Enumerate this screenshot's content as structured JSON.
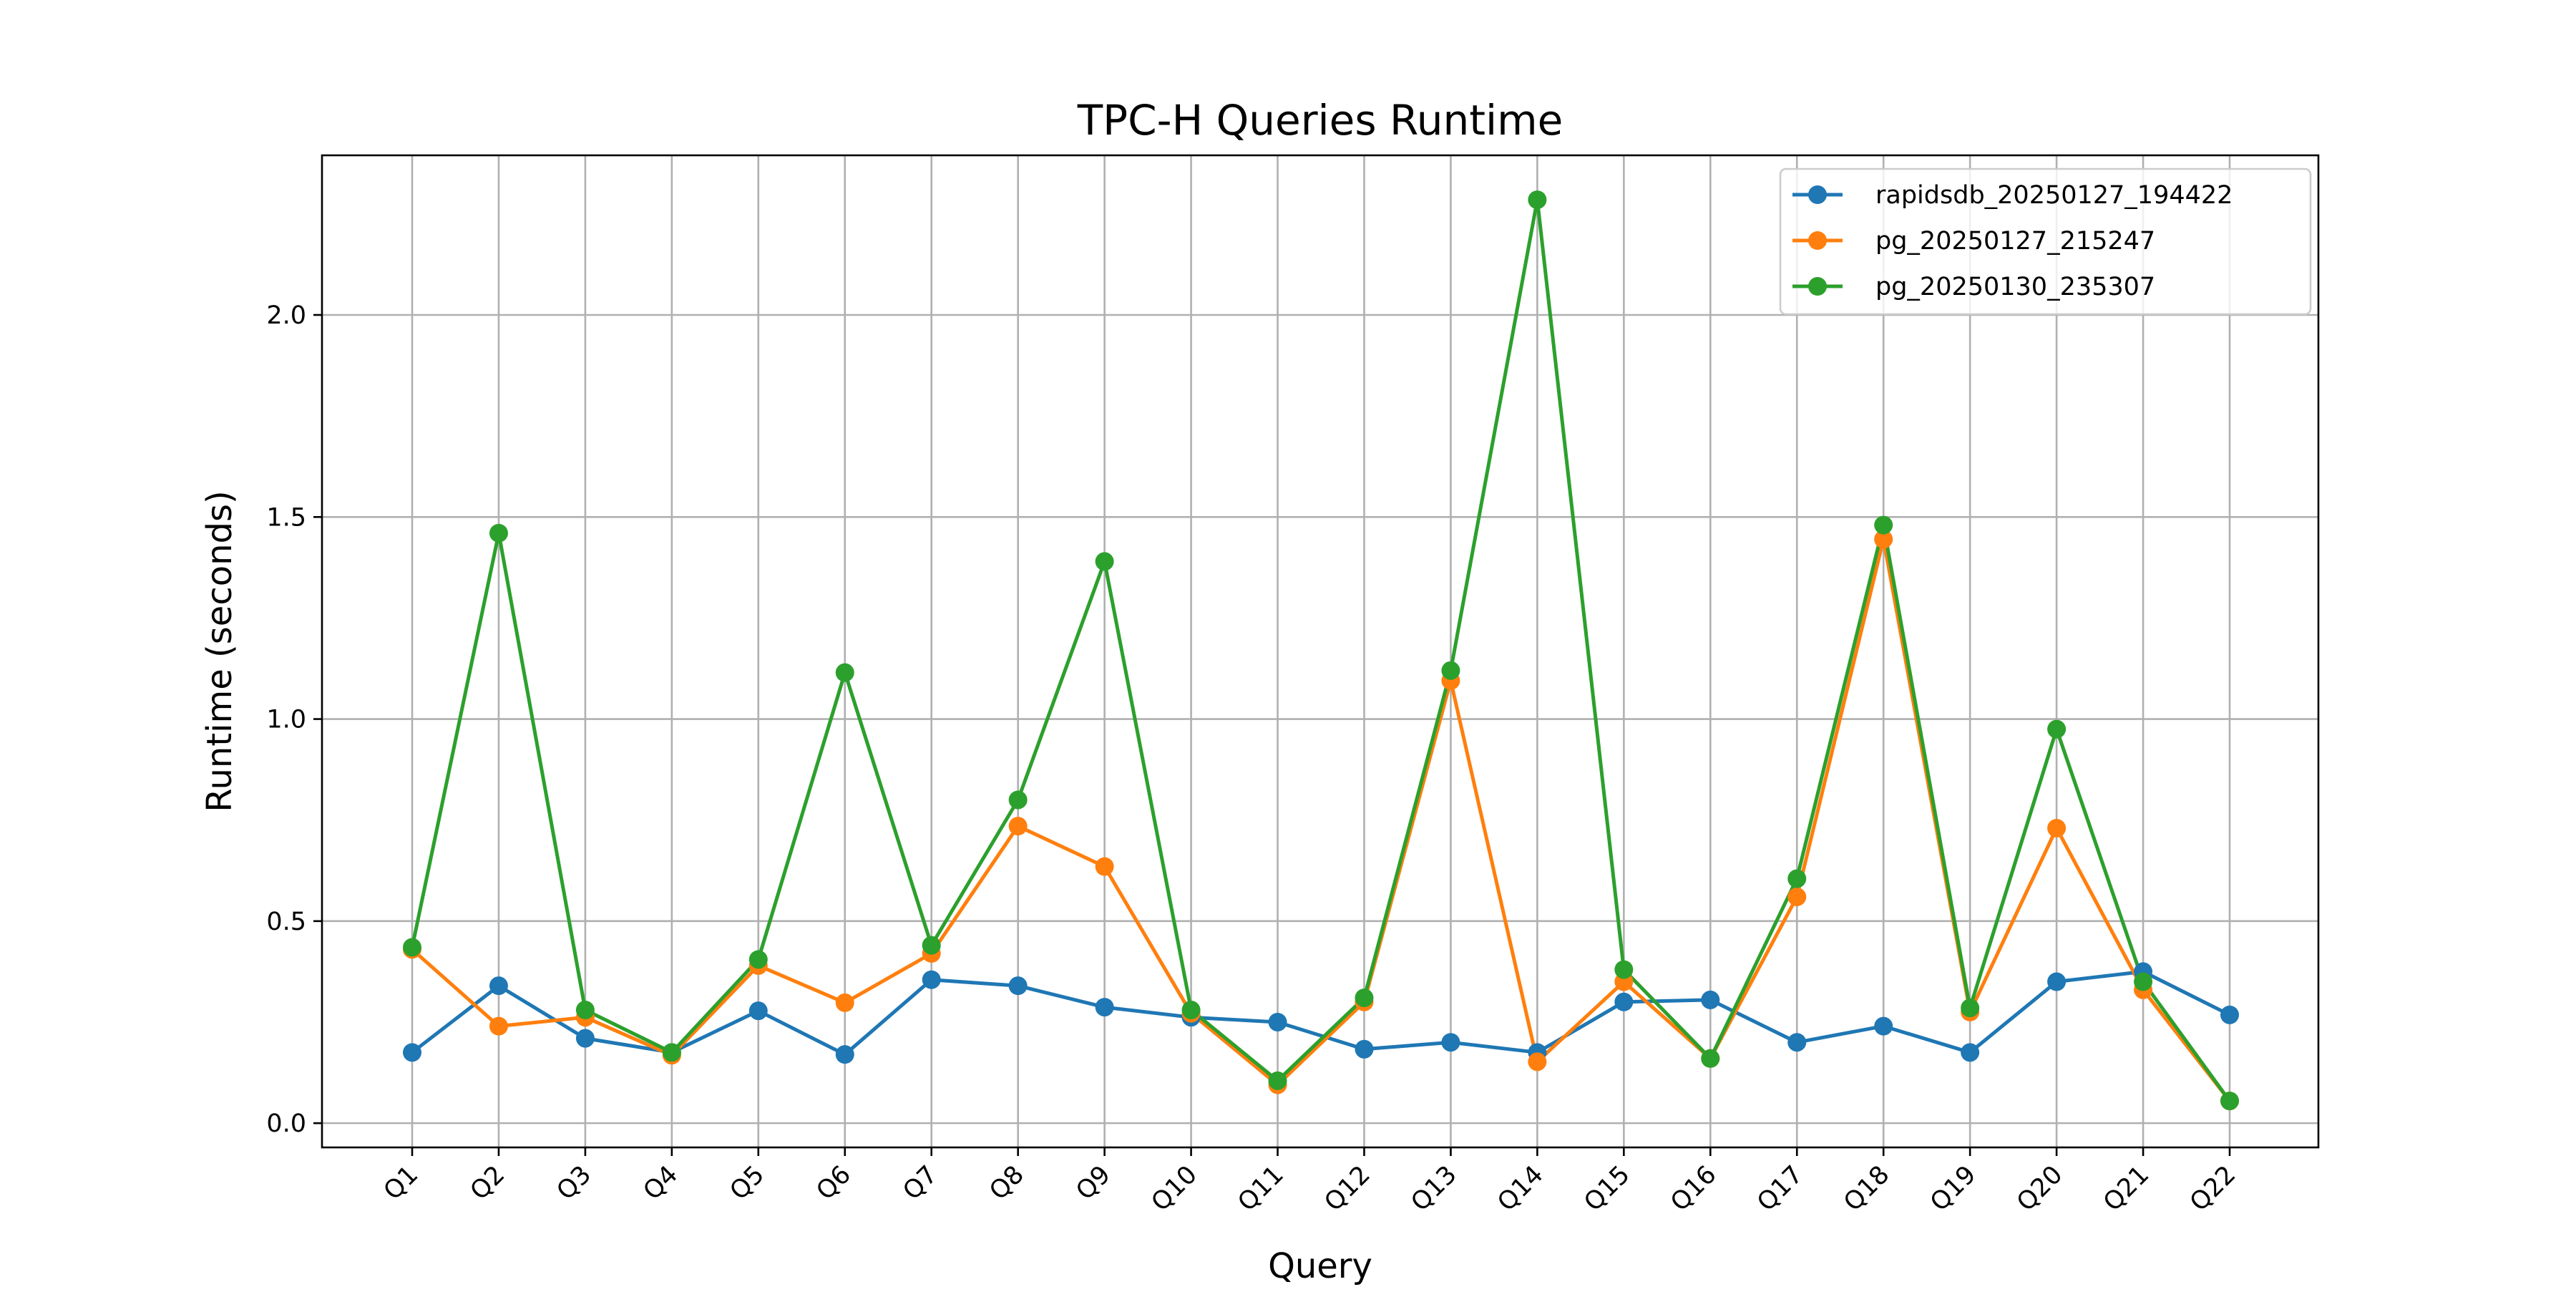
{
  "chart_data": {
    "type": "line",
    "title": "TPC-H Queries Runtime",
    "xlabel": "Query",
    "ylabel": "Runtime (seconds)",
    "categories": [
      "Q1",
      "Q2",
      "Q3",
      "Q4",
      "Q5",
      "Q6",
      "Q7",
      "Q8",
      "Q9",
      "Q10",
      "Q11",
      "Q12",
      "Q13",
      "Q14",
      "Q15",
      "Q16",
      "Q17",
      "Q18",
      "Q19",
      "Q20",
      "Q21",
      "Q22"
    ],
    "ylim": [
      -0.06,
      2.395
    ],
    "yticks": [
      0.0,
      0.5,
      1.0,
      1.5,
      2.0
    ],
    "ytick_labels": [
      "0.0",
      "0.5",
      "1.0",
      "1.5",
      "2.0"
    ],
    "grid": true,
    "legend_position": "top-right",
    "series": [
      {
        "name": "rapidsdb_20250127_194422",
        "color": "#1f77b4",
        "values": [
          0.175,
          0.34,
          0.21,
          0.175,
          0.278,
          0.17,
          0.355,
          0.34,
          0.287,
          0.262,
          0.25,
          0.183,
          0.2,
          0.175,
          0.3,
          0.305,
          0.2,
          0.24,
          0.175,
          0.35,
          0.375,
          0.268
        ]
      },
      {
        "name": "pg_20250127_215247",
        "color": "#ff7f0e",
        "values": [
          0.43,
          0.24,
          0.262,
          0.168,
          0.39,
          0.298,
          0.42,
          0.735,
          0.635,
          0.272,
          0.095,
          0.3,
          1.095,
          0.152,
          0.35,
          0.16,
          0.56,
          1.445,
          0.275,
          0.73,
          0.33,
          0.055
        ]
      },
      {
        "name": "pg_20250130_235307",
        "color": "#2ca02c",
        "values": [
          0.435,
          1.46,
          0.28,
          0.175,
          0.405,
          1.115,
          0.44,
          0.8,
          1.39,
          0.28,
          0.105,
          0.31,
          1.12,
          2.285,
          0.38,
          0.16,
          0.605,
          1.48,
          0.285,
          0.975,
          0.35,
          0.055
        ]
      }
    ]
  }
}
